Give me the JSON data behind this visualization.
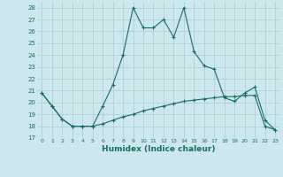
{
  "title": "",
  "xlabel": "Humidex (Indice chaleur)",
  "bg_color": "#cce8ec",
  "grid_color": "#aacccc",
  "line_color": "#1a6b6b",
  "x": [
    0,
    1,
    2,
    3,
    4,
    5,
    6,
    7,
    8,
    9,
    10,
    11,
    12,
    13,
    14,
    15,
    16,
    17,
    18,
    19,
    20,
    21,
    22,
    23
  ],
  "y_max": [
    20.8,
    19.7,
    18.6,
    18.0,
    18.0,
    18.0,
    19.7,
    21.5,
    24.0,
    28.0,
    26.3,
    26.3,
    27.0,
    25.5,
    28.0,
    24.3,
    23.1,
    22.8,
    20.4,
    20.1,
    20.8,
    21.3,
    18.5,
    17.7
  ],
  "y_min": [
    20.8,
    19.7,
    18.6,
    18.0,
    18.0,
    18.0,
    18.2,
    18.5,
    18.8,
    19.0,
    19.3,
    19.5,
    19.7,
    19.9,
    20.1,
    20.2,
    20.3,
    20.4,
    20.5,
    20.5,
    20.6,
    20.6,
    18.0,
    17.7
  ],
  "ylim": [
    17,
    28.5
  ],
  "xlim": [
    -0.5,
    23.5
  ],
  "yticks": [
    17,
    18,
    19,
    20,
    21,
    22,
    23,
    24,
    25,
    26,
    27,
    28
  ],
  "xticks": [
    0,
    1,
    2,
    3,
    4,
    5,
    6,
    7,
    8,
    9,
    10,
    11,
    12,
    13,
    14,
    15,
    16,
    17,
    18,
    19,
    20,
    21,
    22,
    23
  ]
}
